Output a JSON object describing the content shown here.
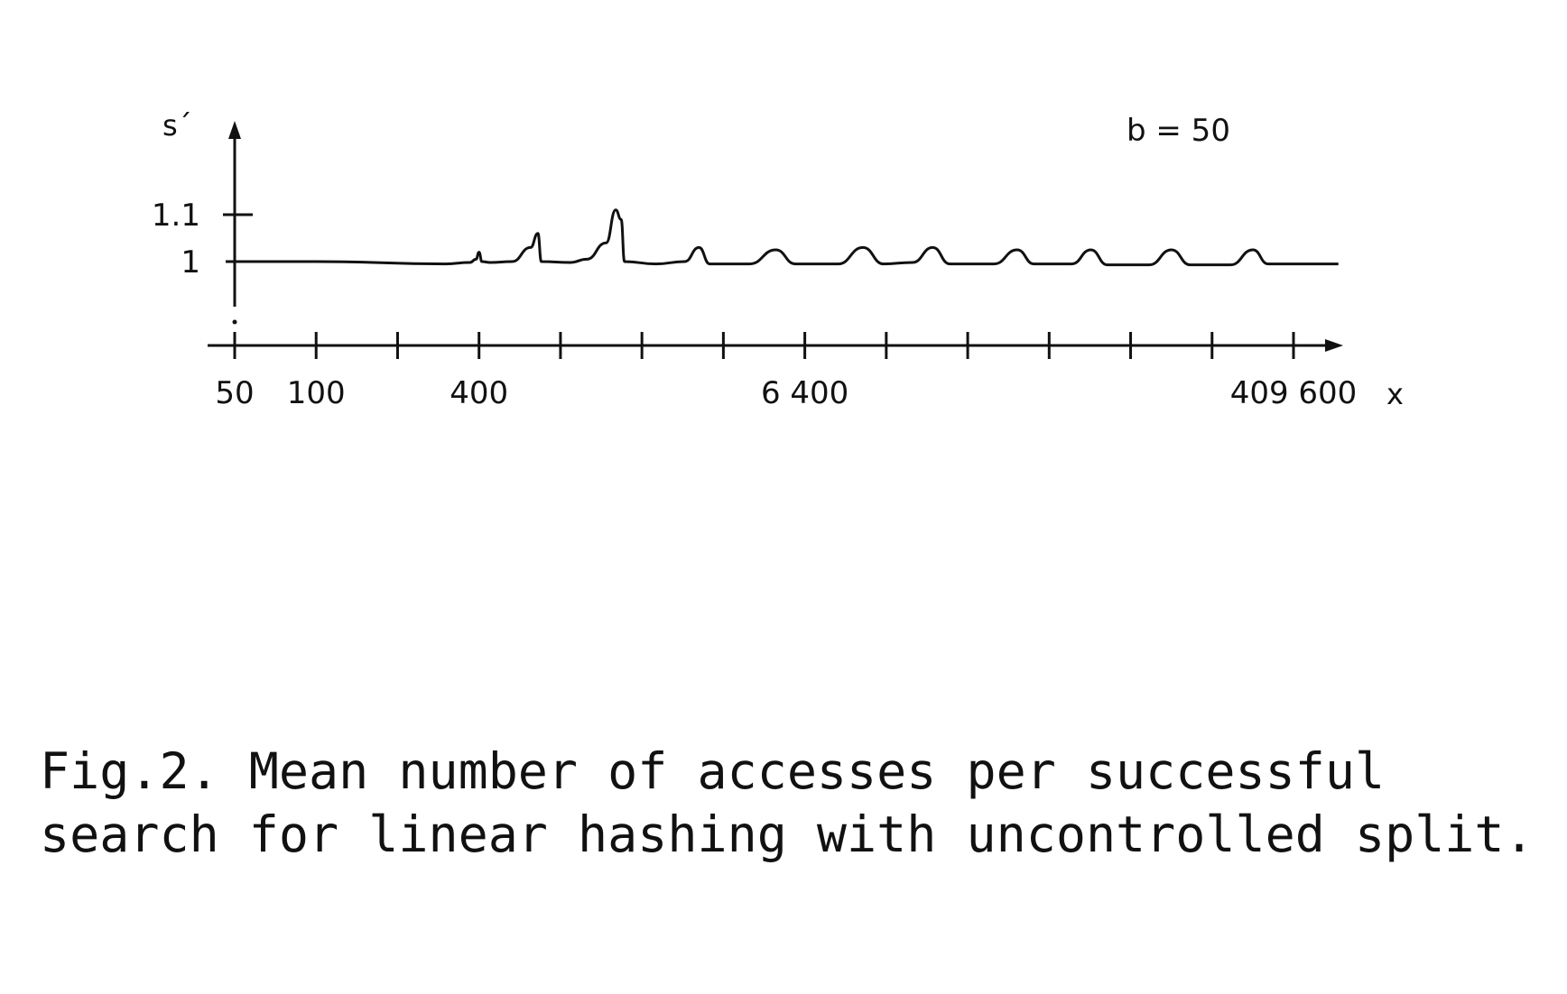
{
  "chart_data": {
    "type": "line",
    "ylabel": "s´",
    "xlabel": "x",
    "annotation": "b = 50",
    "x_scale": "log2",
    "x_ticks": [
      50,
      100,
      200,
      400,
      800,
      1600,
      3200,
      6400,
      12800,
      25600,
      51200,
      102400,
      204800,
      409600
    ],
    "x_tick_labels": [
      {
        "value": 50,
        "label": "50"
      },
      {
        "value": 100,
        "label": "100"
      },
      {
        "value": 400,
        "label": "400"
      },
      {
        "value": 6400,
        "label": "6 400"
      },
      {
        "value": 409600,
        "label": "409 600"
      }
    ],
    "y_ticks": [
      {
        "value": 1,
        "label": "1"
      },
      {
        "value": 1.1,
        "label": "1.1"
      }
    ],
    "ylim": [
      0.9,
      1.2
    ],
    "series": [
      {
        "values": [
          [
            50,
            1.0
          ],
          [
            100,
            1.0
          ],
          [
            300,
            0.995
          ],
          [
            370,
            0.998
          ],
          [
            390,
            1.005
          ],
          [
            400,
            1.02
          ],
          [
            410,
            1.0
          ],
          [
            440,
            0.998
          ],
          [
            530,
            1.0
          ],
          [
            620,
            1.03
          ],
          [
            660,
            1.06
          ],
          [
            680,
            1.0
          ],
          [
            870,
            0.998
          ],
          [
            1000,
            1.005
          ],
          [
            1180,
            1.04
          ],
          [
            1280,
            1.11
          ],
          [
            1340,
            1.09
          ],
          [
            1380,
            1.0
          ],
          [
            1800,
            0.995
          ],
          [
            2300,
            1.0
          ],
          [
            2600,
            1.03
          ],
          [
            2850,
            0.995
          ],
          [
            4000,
            0.995
          ],
          [
            5000,
            1.025
          ],
          [
            5900,
            0.995
          ],
          [
            8500,
            0.995
          ],
          [
            10500,
            1.03
          ],
          [
            12500,
            0.995
          ],
          [
            16000,
            0.998
          ],
          [
            19000,
            1.03
          ],
          [
            22000,
            0.995
          ],
          [
            32000,
            0.995
          ],
          [
            39000,
            1.025
          ],
          [
            45000,
            0.995
          ],
          [
            62000,
            0.995
          ],
          [
            73000,
            1.025
          ],
          [
            84000,
            0.993
          ],
          [
            120000,
            0.993
          ],
          [
            145000,
            1.025
          ],
          [
            170000,
            0.993
          ],
          [
            240000,
            0.993
          ],
          [
            290000,
            1.025
          ],
          [
            330000,
            0.995
          ],
          [
            600000,
            0.995
          ]
        ]
      }
    ]
  },
  "caption": "Fig.2. Mean number of accesses per successful search for linear hashing with uncontrolled split."
}
